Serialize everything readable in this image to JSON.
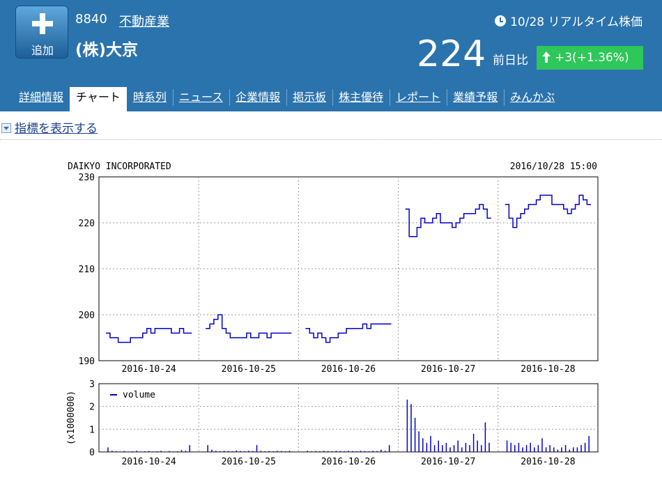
{
  "add_button": {
    "label": "追加"
  },
  "stock": {
    "code": "8840",
    "sector": "不動産業",
    "name": "(株)大京",
    "realtime_label": "10/28 リアルタイム株価",
    "price": "224",
    "prev_label": "前日比",
    "change": "+3(+1.36%)"
  },
  "tabs": [
    "詳細情報",
    "チャート",
    "時系列",
    "ニュース",
    "企業情報",
    "掲示板",
    "株主優待",
    "レポート",
    "業績予報",
    "みんかぶ"
  ],
  "active_tab": 1,
  "indicator_toggle": "指標を表示する",
  "chart_data": {
    "type": "line",
    "title": "DAIKYO INCORPORATED",
    "timestamp": "2016/10/28 15:00",
    "x_categories": [
      "2016-10-24",
      "2016-10-25",
      "2016-10-26",
      "2016-10-27",
      "2016-10-28"
    ],
    "price_axis": {
      "ylim": [
        190,
        230
      ],
      "ticks": [
        "190",
        "200",
        "210",
        "220",
        "230"
      ]
    },
    "price_series": [
      {
        "day": "2016-10-24",
        "values": [
          196,
          195,
          195,
          194,
          194,
          194,
          195,
          195,
          195,
          196,
          197,
          196,
          197,
          197,
          197,
          197,
          196,
          196,
          197,
          196,
          196
        ]
      },
      {
        "day": "2016-10-25",
        "values": [
          197,
          198,
          199,
          200,
          197,
          196,
          195,
          195,
          195,
          195,
          196,
          195,
          195,
          196,
          196,
          195,
          196,
          196,
          196,
          196,
          196
        ]
      },
      {
        "day": "2016-10-26",
        "values": [
          197,
          196,
          195,
          196,
          195,
          194,
          195,
          195,
          196,
          196,
          197,
          197,
          197,
          197,
          198,
          197,
          198,
          198,
          198,
          198,
          198
        ]
      },
      {
        "day": "2016-10-27",
        "values": [
          223,
          217,
          217,
          219,
          221,
          220,
          220,
          221,
          222,
          220,
          220,
          220,
          219,
          220,
          221,
          222,
          222,
          222,
          223,
          224,
          223,
          221
        ]
      },
      {
        "day": "2016-10-28",
        "values": [
          224,
          221,
          219,
          221,
          222,
          223,
          224,
          224,
          225,
          226,
          226,
          226,
          224,
          224,
          224,
          223,
          222,
          223,
          224,
          226,
          225,
          224
        ]
      }
    ],
    "volume_axis": {
      "ylim": [
        0,
        3
      ],
      "ticks": [
        "0",
        "1",
        "2",
        "3"
      ],
      "label": "(x1000000)"
    },
    "volume_legend": "volume",
    "volume_series": [
      {
        "day": "2016-10-24",
        "values": [
          0.2,
          0.05,
          0.03,
          0.02,
          0.04,
          0.02,
          0.03,
          0.05,
          0.02,
          0.03,
          0.04,
          0.02,
          0.03,
          0.05,
          0.02,
          0.04,
          0.02,
          0.03,
          0.08,
          0.05,
          0.3
        ]
      },
      {
        "day": "2016-10-25",
        "values": [
          0.3,
          0.1,
          0.05,
          0.03,
          0.05,
          0.04,
          0.03,
          0.06,
          0.04,
          0.03,
          0.05,
          0.04,
          0.3,
          0.05,
          0.03,
          0.04,
          0.03,
          0.05,
          0.04,
          0.03,
          0.05
        ]
      },
      {
        "day": "2016-10-26",
        "values": [
          0.05,
          0.03,
          0.04,
          0.03,
          0.05,
          0.04,
          0.03,
          0.05,
          0.04,
          0.03,
          0.05,
          0.04,
          0.03,
          0.05,
          0.04,
          0.03,
          0.05,
          0.04,
          0.1,
          0.05,
          0.3
        ]
      },
      {
        "day": "2016-10-27",
        "values": [
          2.3,
          2.1,
          1.5,
          0.9,
          0.6,
          0.4,
          0.7,
          0.3,
          0.5,
          0.3,
          0.4,
          0.2,
          0.3,
          0.5,
          0.2,
          0.4,
          0.3,
          0.8,
          0.5,
          0.3,
          1.3,
          0.4
        ]
      },
      {
        "day": "2016-10-28",
        "values": [
          0.5,
          0.4,
          0.3,
          0.4,
          0.2,
          0.3,
          0.4,
          0.2,
          0.3,
          0.6,
          0.2,
          0.3,
          0.2,
          0.1,
          0.2,
          0.3,
          0.1,
          0.2,
          0.2,
          0.3,
          0.4,
          0.7
        ]
      }
    ]
  }
}
